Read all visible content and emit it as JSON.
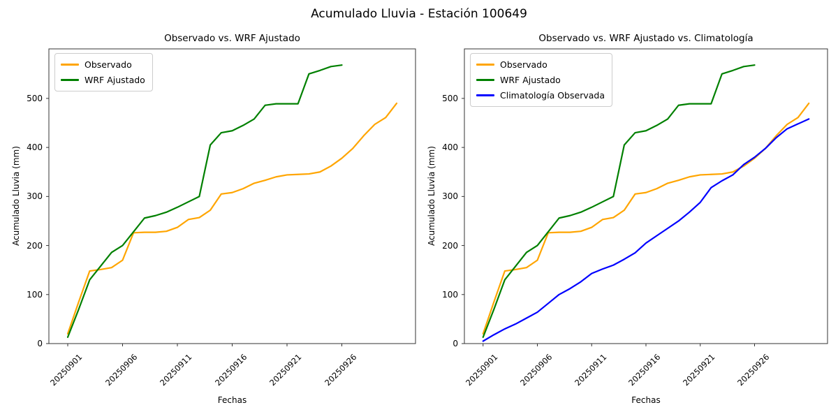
{
  "figure": {
    "title": "Acumulado Lluvia - Estación 100649"
  },
  "colors": {
    "observado": "#FFA500",
    "wrf": "#008000",
    "climatologia": "#0000FF",
    "spine": "#333333",
    "legend_border": "#cccccc"
  },
  "chart_data": [
    {
      "type": "line",
      "title": "Observado vs. WRF Ajustado",
      "xlabel": "Fechas",
      "ylabel": "Acumulado Lluvia (mm)",
      "grid": false,
      "legend_position": "upper-left",
      "ylim": [
        0,
        601
      ],
      "y_ticks": [
        0,
        100,
        200,
        300,
        400,
        500
      ],
      "x_tick_labels": [
        "20250901",
        "20250906",
        "20250911",
        "20250916",
        "20250921",
        "20250926"
      ],
      "x_tick_positions": [
        0,
        5,
        10,
        15,
        20,
        25
      ],
      "dates": [
        "20250901",
        "20250902",
        "20250903",
        "20250904",
        "20250905",
        "20250906",
        "20250907",
        "20250908",
        "20250909",
        "20250910",
        "20250911",
        "20250912",
        "20250913",
        "20250914",
        "20250915",
        "20250916",
        "20250917",
        "20250918",
        "20250919",
        "20250920",
        "20250921",
        "20250922",
        "20250923",
        "20250924",
        "20250925",
        "20250926",
        "20250927",
        "20250928",
        "20250929",
        "20250930",
        "20251001"
      ],
      "series": [
        {
          "name": "Observado",
          "color_key": "observado",
          "values": [
            20,
            85,
            148,
            151,
            155,
            170,
            226,
            227,
            227,
            229,
            237,
            253,
            257,
            272,
            305,
            308,
            316,
            327,
            333,
            340,
            344,
            345,
            346,
            350,
            362,
            378,
            398,
            424,
            447,
            461,
            490
          ]
        },
        {
          "name": "WRF Ajustado",
          "color_key": "wrf",
          "values": [
            13,
            70,
            130,
            158,
            186,
            200,
            228,
            256,
            261,
            268,
            278,
            289,
            300,
            405,
            430,
            434,
            445,
            458,
            486,
            489,
            489,
            489,
            550,
            557,
            565,
            568
          ]
        }
      ]
    },
    {
      "type": "line",
      "title": "Observado vs. WRF Ajustado vs. Climatología",
      "xlabel": "Fechas",
      "ylabel": "Acumulado Lluvia (mm)",
      "grid": false,
      "legend_position": "upper-left",
      "ylim": [
        0,
        601
      ],
      "y_ticks": [
        0,
        100,
        200,
        300,
        400,
        500
      ],
      "x_tick_labels": [
        "20250901",
        "20250906",
        "20250911",
        "20250916",
        "20250921",
        "20250926"
      ],
      "x_tick_positions": [
        0,
        5,
        10,
        15,
        20,
        25
      ],
      "dates": [
        "20250901",
        "20250902",
        "20250903",
        "20250904",
        "20250905",
        "20250906",
        "20250907",
        "20250908",
        "20250909",
        "20250910",
        "20250911",
        "20250912",
        "20250913",
        "20250914",
        "20250915",
        "20250916",
        "20250917",
        "20250918",
        "20250919",
        "20250920",
        "20250921",
        "20250922",
        "20250923",
        "20250924",
        "20250925",
        "20250926",
        "20250927",
        "20250928",
        "20250929",
        "20250930",
        "20251001"
      ],
      "series": [
        {
          "name": "Observado",
          "color_key": "observado",
          "values": [
            20,
            85,
            148,
            151,
            155,
            170,
            226,
            227,
            227,
            229,
            237,
            253,
            257,
            272,
            305,
            308,
            316,
            327,
            333,
            340,
            344,
            345,
            346,
            350,
            362,
            378,
            398,
            424,
            447,
            461,
            490
          ]
        },
        {
          "name": "WRF Ajustado",
          "color_key": "wrf",
          "values": [
            13,
            70,
            130,
            158,
            186,
            200,
            228,
            256,
            261,
            268,
            278,
            289,
            300,
            405,
            430,
            434,
            445,
            458,
            486,
            489,
            489,
            489,
            550,
            557,
            565,
            568
          ]
        },
        {
          "name": "Climatología Observada",
          "color_key": "climatologia",
          "values": [
            5,
            18,
            30,
            40,
            52,
            64,
            82,
            100,
            112,
            126,
            143,
            152,
            160,
            172,
            185,
            205,
            220,
            235,
            250,
            268,
            288,
            318,
            332,
            344,
            365,
            380,
            398,
            420,
            438,
            448,
            458
          ]
        }
      ]
    }
  ]
}
